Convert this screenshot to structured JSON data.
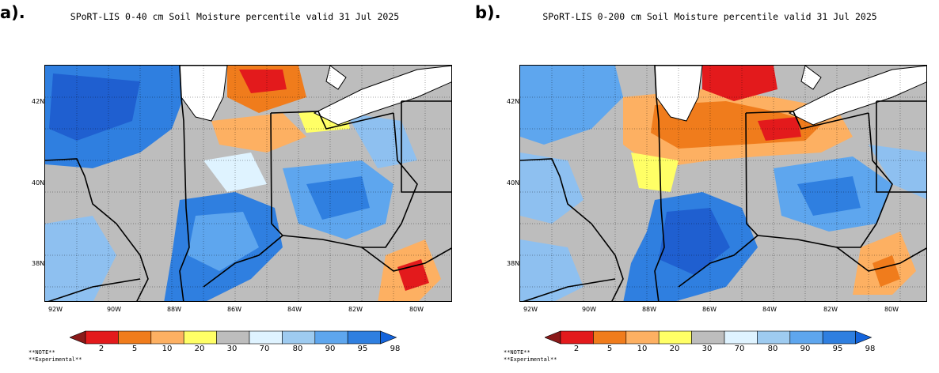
{
  "panels": [
    {
      "letter": "a).",
      "title": "SPoRT-LIS 0-40 cm Soil Moisture percentile valid 31 Jul 2025",
      "latitude_labels": [
        "42N",
        "40N",
        "38N"
      ],
      "longitude_labels": [
        "92W",
        "90W",
        "88W",
        "86W",
        "84W",
        "82W",
        "80W"
      ],
      "notes": [
        "**NOTE**",
        "**Experimental**"
      ],
      "map_icon": "soil-moisture-map"
    },
    {
      "letter": "b).",
      "title": "SPoRT-LIS 0-200 cm Soil Moisture percentile valid 31 Jul 2025",
      "latitude_labels": [
        "42N",
        "40N",
        "38N"
      ],
      "longitude_labels": [
        "92W",
        "90W",
        "88W",
        "86W",
        "84W",
        "82W",
        "80W"
      ],
      "notes": [
        "**NOTE**",
        "**Experimental**"
      ],
      "map_icon": "soil-moisture-map"
    }
  ],
  "colorbar": {
    "labels": [
      "2",
      "5",
      "10",
      "20",
      "30",
      "70",
      "80",
      "90",
      "95",
      "98"
    ],
    "colors": [
      "#8b1a1a",
      "#e31a1c",
      "#f07c1c",
      "#fdb062",
      "#ffff66",
      "#bdbdbd",
      "#dff3ff",
      "#9ecbf0",
      "#5ea6ee",
      "#2f7fe0",
      "#1464dc"
    ]
  },
  "map_colors": {
    "wet": "#2f7fe0",
    "very_wet": "#1f5fd0",
    "moist": "#8ec0f0",
    "neutral": "#bdbdbd",
    "dry": "#fdb062",
    "very_dry": "#f07c1c",
    "extreme_dry": "#e31a1c",
    "lake": "#ffffff"
  }
}
